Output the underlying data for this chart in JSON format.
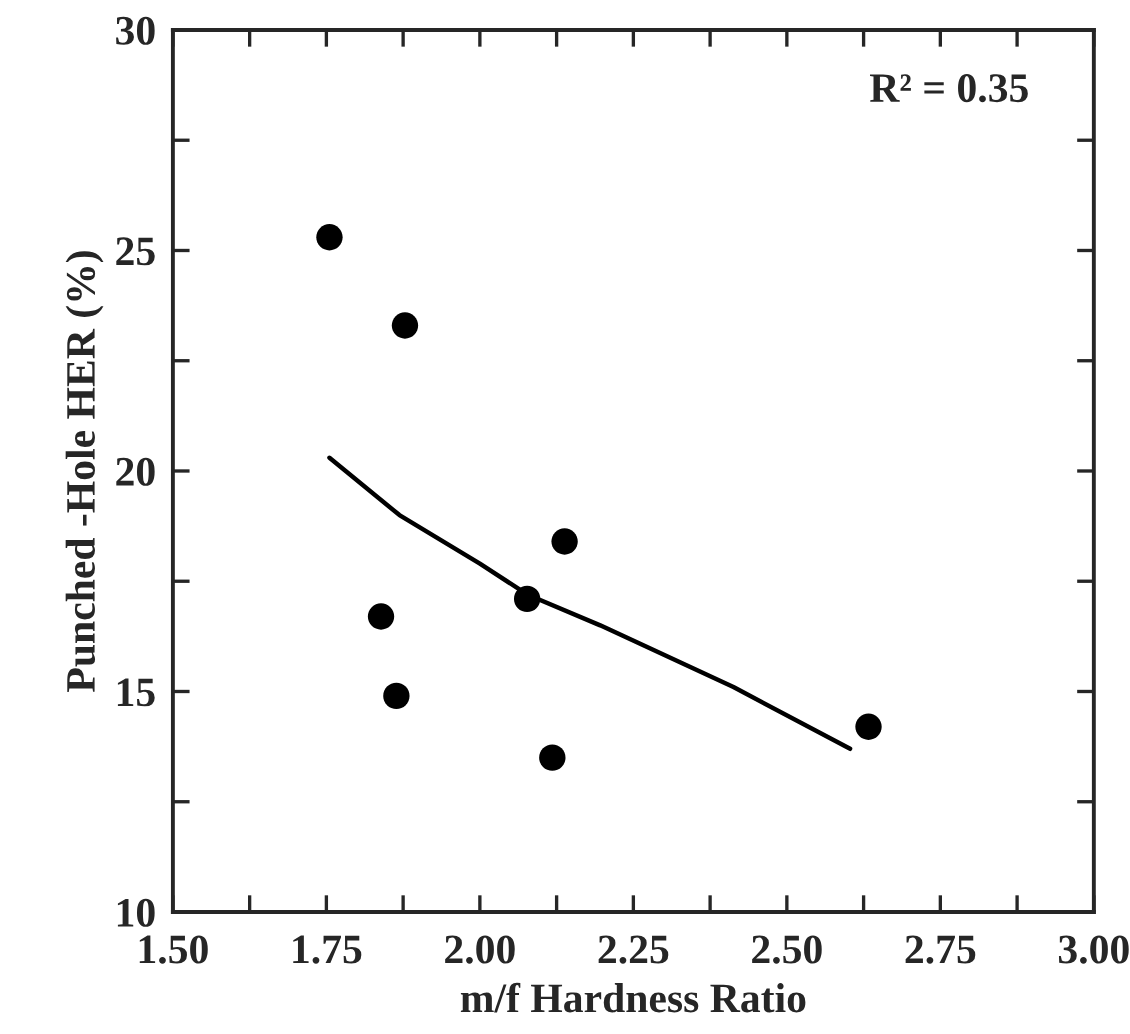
{
  "chart_data": {
    "type": "scatter",
    "xlabel": "m/f Hardness Ratio",
    "ylabel": "Punched -Hole HER (%)",
    "annotations": [
      "R² = 0.35"
    ],
    "series": [
      {
        "color": "#000000",
        "marker": "circle",
        "x": [
          1.755,
          1.878,
          1.839,
          1.864,
          2.077,
          2.138,
          2.118,
          2.633
        ],
        "values": [
          25.3,
          23.3,
          16.7,
          14.9,
          17.1,
          18.4,
          13.5,
          14.2
        ]
      },
      {
        "type": "line",
        "color": "#000000",
        "marker": "none",
        "line_style": "solid",
        "x": [
          1.755,
          1.869,
          2.0,
          2.077,
          2.196,
          2.413,
          2.603
        ],
        "values": [
          20.3,
          19.0,
          17.9,
          17.2,
          16.5,
          15.1,
          13.7
        ]
      }
    ],
    "xlim": [
      1.5,
      3.0
    ],
    "ylim": [
      10,
      30
    ],
    "xticks": [
      {
        "value": 1.5,
        "label": "1.50"
      },
      {
        "value": 1.625,
        "label": null
      },
      {
        "value": 1.75,
        "label": "1.75"
      },
      {
        "value": 1.875,
        "label": null
      },
      {
        "value": 2.0,
        "label": "2.00"
      },
      {
        "value": 2.125,
        "label": null
      },
      {
        "value": 2.25,
        "label": "2.25"
      },
      {
        "value": 2.375,
        "label": null
      },
      {
        "value": 2.5,
        "label": "2.50"
      },
      {
        "value": 2.625,
        "label": null
      },
      {
        "value": 2.75,
        "label": "2.75"
      },
      {
        "value": 2.875,
        "label": null
      },
      {
        "value": 3.0,
        "label": "3.00"
      }
    ],
    "yticks": [
      10,
      {
        "value": 12.5,
        "label": null
      },
      15,
      {
        "value": 17.5,
        "label": null
      },
      20,
      {
        "value": 22.5,
        "label": null
      },
      25,
      {
        "value": 27.5,
        "label": null
      },
      30
    ],
    "grid": false,
    "legend": false
  }
}
